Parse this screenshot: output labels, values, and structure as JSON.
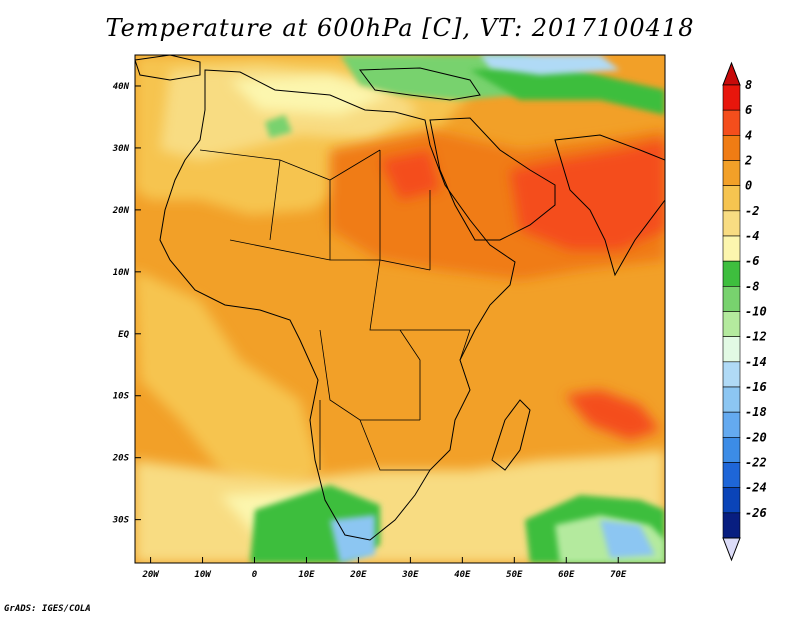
{
  "title": "Temperature at 600hPa [C], VT: 2017100418",
  "footer": "GrADS: IGES/COLA",
  "map": {
    "region": "Africa, Arabian Peninsula and India",
    "lon_range": [
      -23,
      79
    ],
    "lat_range": [
      -37,
      45
    ],
    "lat_ticks": [
      {
        "value": 40,
        "label": "40N"
      },
      {
        "value": 30,
        "label": "30N"
      },
      {
        "value": 20,
        "label": "20N"
      },
      {
        "value": 10,
        "label": "10N"
      },
      {
        "value": 0,
        "label": "EQ"
      },
      {
        "value": -10,
        "label": "10S"
      },
      {
        "value": -20,
        "label": "20S"
      },
      {
        "value": -30,
        "label": "30S"
      }
    ],
    "lon_ticks": [
      {
        "value": -20,
        "label": "20W"
      },
      {
        "value": -10,
        "label": "10W"
      },
      {
        "value": 0,
        "label": "0"
      },
      {
        "value": 10,
        "label": "10E"
      },
      {
        "value": 20,
        "label": "20E"
      },
      {
        "value": 30,
        "label": "30E"
      },
      {
        "value": 40,
        "label": "40E"
      },
      {
        "value": 50,
        "label": "50E"
      },
      {
        "value": 60,
        "label": "60E"
      },
      {
        "value": 70,
        "label": "70E"
      }
    ]
  },
  "colorbar": {
    "labels": [
      "8",
      "6",
      "4",
      "2",
      "0",
      "-2",
      "-4",
      "-6",
      "-8",
      "-10",
      "-12",
      "-14",
      "-16",
      "-18",
      "-20",
      "-22",
      "-24",
      "-26"
    ],
    "colors": [
      "#e8160c",
      "#f44e1c",
      "#f07c14",
      "#f2a028",
      "#f6c450",
      "#f8dc82",
      "#fcf6ae",
      "#3ebe3e",
      "#78d26e",
      "#b4ea9e",
      "#e2fae4",
      "#b0daf6",
      "#8cc6f2",
      "#64aaf0",
      "#3c8ce6",
      "#1e66d8",
      "#0a44b8",
      "#081e80"
    ],
    "over_color": "#c80a0a",
    "under_color": "#dcdcf8"
  }
}
